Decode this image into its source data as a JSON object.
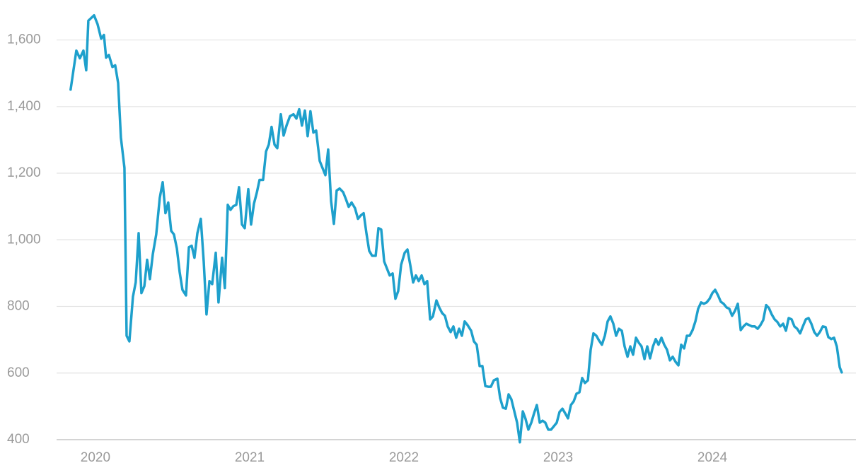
{
  "chart_data": {
    "type": "line",
    "color": "#1ea0cc",
    "grid": true,
    "xlim": [
      2019.748,
      2024.931
    ],
    "xticks": [
      2020,
      2021,
      2022,
      2023,
      2024
    ],
    "ylim": [
      400,
      1720
    ],
    "yticks": [
      400,
      600,
      800,
      {
        "value": 1000,
        "label": "1,000"
      },
      {
        "value": 1200,
        "label": "1,200"
      },
      {
        "value": 1400,
        "label": "1,400"
      },
      {
        "value": 1600,
        "label": "1,600"
      }
    ],
    "x": [
      2019.839,
      2019.876,
      2019.899,
      2019.922,
      2019.94,
      2019.954,
      2019.991,
      2020.014,
      2020.037,
      2020.055,
      2020.069,
      2020.087,
      2020.11,
      2020.128,
      2020.147,
      2020.165,
      2020.188,
      2020.202,
      2020.22,
      2020.243,
      2020.261,
      2020.28,
      2020.298,
      2020.317,
      2020.335,
      2020.353,
      2020.372,
      2020.394,
      2020.417,
      2020.436,
      2020.454,
      2020.472,
      2020.491,
      2020.509,
      2020.528,
      2020.546,
      2020.564,
      2020.587,
      2020.606,
      2020.624,
      2020.642,
      2020.661,
      2020.683,
      2020.702,
      2020.72,
      2020.739,
      2020.757,
      2020.78,
      2020.798,
      2020.821,
      2020.839,
      2020.858,
      2020.876,
      2020.894,
      2020.913,
      2020.931,
      2020.95,
      2020.968,
      2020.991,
      2021.009,
      2021.028,
      2021.046,
      2021.064,
      2021.087,
      2021.106,
      2021.124,
      2021.142,
      2021.161,
      2021.179,
      2021.202,
      2021.22,
      2021.239,
      2021.261,
      2021.284,
      2021.303,
      2021.321,
      2021.339,
      2021.358,
      2021.376,
      2021.394,
      2021.413,
      2021.431,
      2021.454,
      2021.472,
      2021.491,
      2021.509,
      2021.528,
      2021.546,
      2021.564,
      2021.583,
      2021.606,
      2021.624,
      2021.642,
      2021.661,
      2021.683,
      2021.702,
      2021.72,
      2021.739,
      2021.757,
      2021.775,
      2021.794,
      2021.817,
      2021.835,
      2021.853,
      2021.872,
      2021.89,
      2021.908,
      2021.927,
      2021.945,
      2021.963,
      2021.982,
      2022.005,
      2022.023,
      2022.041,
      2022.06,
      2022.078,
      2022.096,
      2022.115,
      2022.133,
      2022.151,
      2022.17,
      2022.188,
      2022.211,
      2022.229,
      2022.248,
      2022.266,
      2022.284,
      2022.303,
      2022.321,
      2022.339,
      2022.358,
      2022.376,
      2022.394,
      2022.413,
      2022.436,
      2022.454,
      2022.472,
      2022.491,
      2022.509,
      2022.528,
      2022.546,
      2022.564,
      2022.583,
      2022.606,
      2022.624,
      2022.642,
      2022.661,
      2022.679,
      2022.697,
      2022.716,
      2022.734,
      2022.752,
      2022.771,
      2022.789,
      2022.807,
      2022.826,
      2022.844,
      2022.862,
      2022.881,
      2022.899,
      2022.917,
      2022.936,
      2022.954,
      2022.972,
      2022.991,
      2023.009,
      2023.028,
      2023.046,
      2023.064,
      2023.083,
      2023.101,
      2023.119,
      2023.138,
      2023.156,
      2023.174,
      2023.193,
      2023.211,
      2023.229,
      2023.248,
      2023.266,
      2023.284,
      2023.303,
      2023.321,
      2023.339,
      2023.358,
      2023.376,
      2023.394,
      2023.413,
      2023.431,
      2023.45,
      2023.468,
      2023.486,
      2023.505,
      2023.523,
      2023.541,
      2023.56,
      2023.578,
      2023.596,
      2023.615,
      2023.633,
      2023.651,
      2023.67,
      2023.688,
      2023.706,
      2023.725,
      2023.743,
      2023.761,
      2023.78,
      2023.798,
      2023.817,
      2023.835,
      2023.853,
      2023.872,
      2023.89,
      2023.908,
      2023.927,
      2023.945,
      2023.963,
      2023.982,
      2024.0,
      2024.018,
      2024.037,
      2024.055,
      2024.073,
      2024.092,
      2024.11,
      2024.128,
      2024.147,
      2024.165,
      2024.184,
      2024.202,
      2024.22,
      2024.239,
      2024.257,
      2024.275,
      2024.294,
      2024.312,
      2024.33,
      2024.349,
      2024.367,
      2024.385,
      2024.404,
      2024.422,
      2024.44,
      2024.459,
      2024.477,
      2024.495,
      2024.514,
      2024.532,
      2024.55,
      2024.569,
      2024.587,
      2024.606,
      2024.624,
      2024.642,
      2024.661,
      2024.679,
      2024.697,
      2024.716,
      2024.734,
      2024.752,
      2024.771,
      2024.789,
      2024.807,
      2024.826,
      2024.839
    ],
    "values": [
      1451,
      1568,
      1545,
      1568,
      1509,
      1658,
      1674,
      1647,
      1604,
      1615,
      1547,
      1555,
      1519,
      1524,
      1471,
      1307,
      1216,
      712,
      695,
      829,
      872,
      1020,
      840,
      861,
      940,
      882,
      957,
      1016,
      1126,
      1173,
      1080,
      1112,
      1027,
      1016,
      974,
      903,
      850,
      833,
      978,
      982,
      946,
      1020,
      1063,
      935,
      776,
      876,
      867,
      961,
      812,
      946,
      855,
      1105,
      1090,
      1101,
      1105,
      1158,
      1046,
      1035,
      1152,
      1046,
      1109,
      1141,
      1180,
      1180,
      1265,
      1286,
      1339,
      1286,
      1275,
      1377,
      1313,
      1343,
      1371,
      1377,
      1364,
      1392,
      1343,
      1388,
      1311,
      1386,
      1322,
      1328,
      1237,
      1216,
      1194,
      1271,
      1116,
      1048,
      1148,
      1154,
      1143,
      1122,
      1099,
      1112,
      1095,
      1063,
      1073,
      1080,
      1020,
      967,
      952,
      952,
      1035,
      1031,
      935,
      914,
      893,
      899,
      823,
      846,
      925,
      961,
      971,
      925,
      872,
      893,
      876,
      893,
      867,
      876,
      761,
      770,
      818,
      797,
      780,
      772,
      740,
      723,
      740,
      706,
      733,
      712,
      755,
      744,
      727,
      695,
      685,
      621,
      621,
      561,
      559,
      559,
      578,
      583,
      525,
      496,
      493,
      536,
      521,
      485,
      451,
      392,
      485,
      462,
      430,
      451,
      479,
      504,
      451,
      457,
      451,
      430,
      430,
      440,
      451,
      483,
      493,
      479,
      464,
      504,
      515,
      538,
      542,
      585,
      570,
      578,
      670,
      719,
      712,
      697,
      685,
      712,
      755,
      770,
      748,
      712,
      733,
      727,
      680,
      649,
      680,
      655,
      706,
      691,
      680,
      642,
      680,
      644,
      680,
      702,
      685,
      706,
      685,
      670,
      638,
      649,
      634,
      623,
      685,
      674,
      712,
      712,
      729,
      755,
      793,
      812,
      808,
      812,
      823,
      840,
      850,
      833,
      814,
      808,
      797,
      793,
      772,
      787,
      808,
      729,
      740,
      748,
      744,
      740,
      740,
      733,
      744,
      759,
      804,
      795,
      776,
      761,
      753,
      740,
      748,
      727,
      765,
      761,
      740,
      733,
      719,
      740,
      761,
      765,
      748,
      723,
      712,
      723,
      740,
      738,
      708,
      702,
      706,
      680,
      617,
      602
    ]
  }
}
